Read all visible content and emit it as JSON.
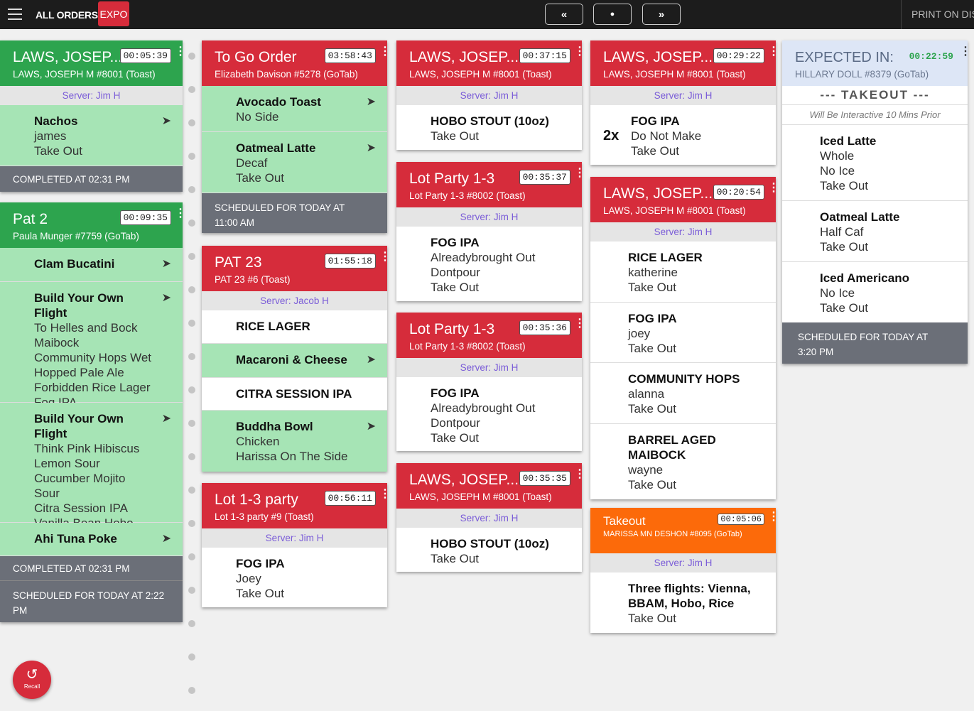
{
  "topbar": {
    "title": "ALL ORDERS",
    "expo": "EXPO",
    "prev": "«",
    "center": "●",
    "next": "»",
    "print": "PRINT ON DISP"
  },
  "recall": {
    "label": "Recall",
    "icon": "↺"
  },
  "kebab": "⋮",
  "send_icon": "➤",
  "cards": {
    "c1": {
      "name": "LAWS, JOSEP...",
      "timer": "00:05:39",
      "sub": "LAWS, JOSEPH M #8001 (Toast)",
      "server": "Server: Jim H",
      "items": [
        {
          "name": "Nachos",
          "mods": [
            "james",
            "Take Out"
          ]
        }
      ],
      "footer": "COMPLETED AT 02:31 PM"
    },
    "c2": {
      "name": "Pat 2",
      "timer": "00:09:35",
      "sub": "Paula Munger #7759 (GoTab)",
      "items": [
        {
          "name": "Clam Bucatini",
          "mods": []
        },
        {
          "name": "Build Your Own Flight",
          "mods": [
            "To Helles and Bock Maibock",
            "Community Hops Wet Hopped Pale Ale",
            "Forbidden Rice Lager",
            "Fog IPA"
          ]
        },
        {
          "name": "Build Your Own Flight",
          "mods": [
            "Think Pink Hibiscus Lemon Sour",
            "Cucumber Mojito Sour",
            "Citra Session IPA",
            "Vanilla Bean Hobo Imperial Stout"
          ]
        },
        {
          "name": "Ahi Tuna Poke",
          "mods": []
        }
      ],
      "footer1": "COMPLETED AT 02:31 PM",
      "footer2": "SCHEDULED FOR TODAY AT 2:22 PM"
    },
    "c3": {
      "name": "To Go Order",
      "timer": "03:58:43",
      "sub": "Elizabeth Davison #5278 (GoTab)",
      "items": [
        {
          "name": "Avocado Toast",
          "mods": [
            "No Side"
          ]
        },
        {
          "name": "Oatmeal Latte",
          "mods": [
            "Decaf",
            "Take Out"
          ]
        }
      ],
      "footer": "SCHEDULED FOR TODAY AT 11:00 AM"
    },
    "c4": {
      "name": "PAT 23",
      "timer": "01:55:18",
      "sub": "PAT 23 #6 (Toast)",
      "server": "Server: Jacob H",
      "items": [
        {
          "name": "RICE LAGER",
          "mods": []
        },
        {
          "name": "Macaroni & Cheese",
          "mods": []
        },
        {
          "name": "CITRA SESSION IPA",
          "mods": []
        },
        {
          "name": "Buddha Bowl",
          "mods": [
            "Chicken",
            "Harissa On The Side"
          ]
        }
      ]
    },
    "c5": {
      "name": "Lot 1-3 party",
      "timer": "00:56:11",
      "sub": "Lot 1-3 party #9 (Toast)",
      "server": "Server: Jim H",
      "items": [
        {
          "name": "FOG IPA",
          "mods": [
            "Joey",
            "Take Out"
          ]
        }
      ]
    },
    "c6": {
      "name": "LAWS, JOSEP...",
      "timer": "00:37:15",
      "sub": "LAWS, JOSEPH M #8001 (Toast)",
      "server": "Server: Jim H",
      "items": [
        {
          "name": "HOBO STOUT (10oz)",
          "mods": [
            "Take Out"
          ]
        }
      ]
    },
    "c7": {
      "name": "Lot Party 1-3",
      "timer": "00:35:37",
      "sub": "Lot Party 1-3 #8002 (Toast)",
      "server": "Server: Jim H",
      "items": [
        {
          "name": "FOG IPA",
          "mods": [
            "Alreadybrought Out",
            "Dontpour",
            "Take Out"
          ]
        }
      ]
    },
    "c8": {
      "name": "Lot Party 1-3",
      "timer": "00:35:36",
      "sub": "Lot Party 1-3 #8002 (Toast)",
      "server": "Server: Jim H",
      "items": [
        {
          "name": "FOG IPA",
          "mods": [
            "Alreadybrought Out",
            "Dontpour",
            "Take Out"
          ]
        }
      ]
    },
    "c9": {
      "name": "LAWS, JOSEP...",
      "timer": "00:35:35",
      "sub": "LAWS, JOSEPH M #8001 (Toast)",
      "server": "Server: Jim H",
      "items": [
        {
          "name": "HOBO STOUT (10oz)",
          "mods": [
            "Take Out"
          ]
        }
      ]
    },
    "c10": {
      "name": "LAWS, JOSEP...",
      "timer": "00:29:22",
      "sub": "LAWS, JOSEPH M #8001 (Toast)",
      "server": "Server: Jim H",
      "items": [
        {
          "qty": "2x",
          "name": "FOG IPA",
          "mods": [
            "Do Not Make",
            "Take Out"
          ]
        }
      ]
    },
    "c11": {
      "name": "LAWS, JOSEP...",
      "timer": "00:20:54",
      "sub": "LAWS, JOSEPH M #8001 (Toast)",
      "server": "Server: Jim H",
      "items": [
        {
          "name": "RICE LAGER",
          "mods": [
            "katherine",
            "Take Out"
          ]
        },
        {
          "name": "FOG IPA",
          "mods": [
            "joey",
            "Take Out"
          ]
        },
        {
          "name": "COMMUNITY HOPS",
          "mods": [
            "alanna",
            "Take Out"
          ]
        },
        {
          "name": "BARREL AGED MAIBOCK",
          "mods": [
            "wayne",
            "Take Out"
          ]
        }
      ]
    },
    "c12": {
      "name": "Takeout",
      "timer": "00:05:06",
      "sub": "MARISSA MN DESHON #8095 (GoTab)",
      "server": "Server: Jim H",
      "items": [
        {
          "name": "Three flights: Vienna, BBAM, Hobo, Rice",
          "mods": [
            "Take Out"
          ]
        }
      ]
    },
    "c13": {
      "name": "EXPECTED IN:",
      "timer": "00:22:59",
      "sub": "HILLARY DOLL #8379 (GoTab)",
      "takeout": "--- TAKEOUT ---",
      "interactive": "Will Be Interactive 10 Mins Prior",
      "items": [
        {
          "name": "Iced Latte",
          "mods": [
            "Whole",
            "No Ice",
            "Take Out"
          ]
        },
        {
          "name": "Oatmeal Latte",
          "mods": [
            "Half Caf",
            "Take Out"
          ]
        },
        {
          "name": "Iced Americano",
          "mods": [
            "No Ice",
            "Take Out"
          ]
        }
      ],
      "footer": "SCHEDULED FOR TODAY AT 3:20 PM"
    }
  }
}
